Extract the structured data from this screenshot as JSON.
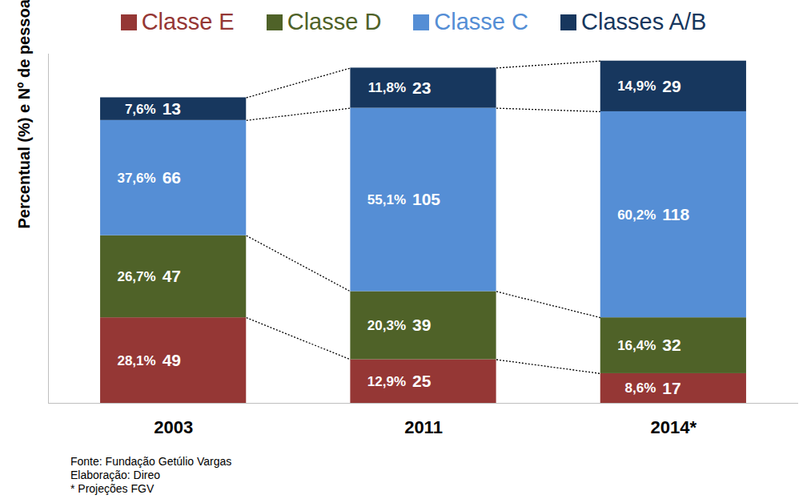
{
  "chart_data": {
    "type": "bar",
    "stacked": true,
    "y_label": "Percentual (%) e Nº de pessoas (milhões)",
    "categories": [
      "2003",
      "2011",
      "2014*"
    ],
    "series": [
      {
        "name": "Classe E",
        "color": "#953735",
        "values": [
          49,
          25,
          17
        ],
        "share_labels": [
          "28,1%",
          "12,9%",
          "8,6%"
        ]
      },
      {
        "name": "Classe D",
        "color": "#4f6228",
        "values": [
          47,
          39,
          32
        ],
        "share_labels": [
          "26,7%",
          "20,3%",
          "16,4%"
        ]
      },
      {
        "name": "Classe C",
        "color": "#558ed5",
        "values": [
          66,
          105,
          118
        ],
        "share_labels": [
          "37,6%",
          "55,1%",
          "60,2%"
        ]
      },
      {
        "name": "Classes A/B",
        "color": "#17375e",
        "values": [
          13,
          23,
          29
        ],
        "share_labels": [
          "7,6%",
          "11,8%",
          "14,9%"
        ]
      }
    ],
    "ylim": [
      0,
      200
    ],
    "yticks": [],
    "tick_labels": "x",
    "data_labels": true,
    "legend": "top",
    "notes": [
      "Fonte: Fundação Getúlio Vargas",
      "Elaboração: Direo",
      "* Projeções FGV"
    ]
  }
}
